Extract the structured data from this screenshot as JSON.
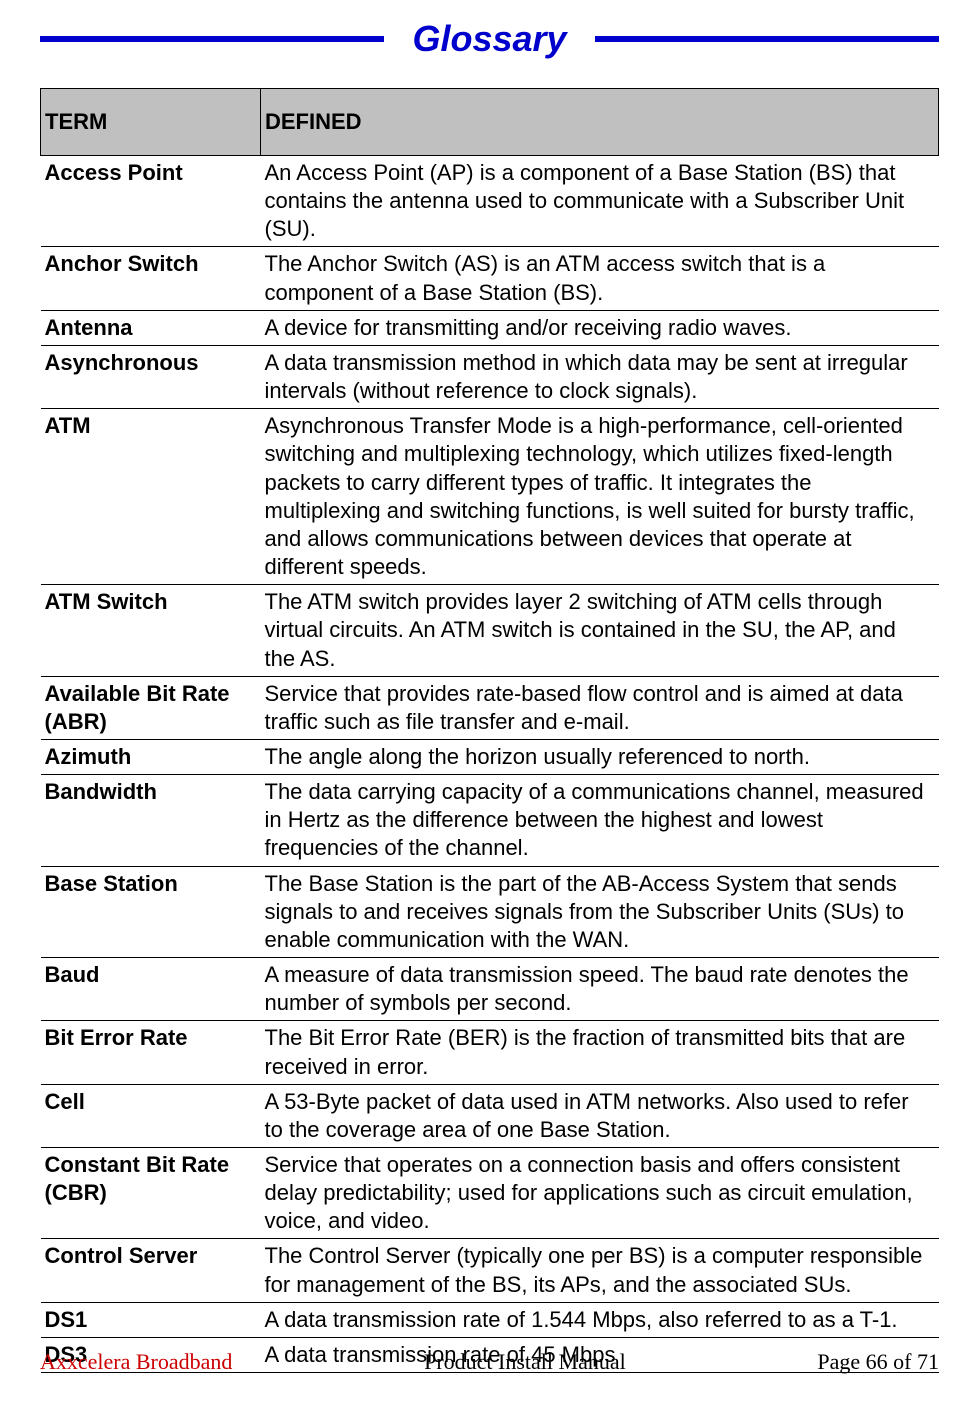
{
  "title": "Glossary",
  "header": {
    "term_col": "TERM",
    "def_col": "DEFINED"
  },
  "rows": [
    {
      "term": "Access Point",
      "def": "An Access Point (AP) is a component of a Base Station (BS) that contains the antenna used to communicate with a Subscriber Unit (SU)."
    },
    {
      "term": "Anchor Switch",
      "def": "The Anchor Switch (AS) is an ATM access switch that is a component of a Base Station (BS)."
    },
    {
      "term": "Antenna",
      "def": "A device for transmitting and/or receiving radio waves."
    },
    {
      "term": "Asynchronous",
      "def": "A data transmission method in which data may be sent at irregular intervals (without reference to clock signals)."
    },
    {
      "term": "ATM",
      "def": "Asynchronous Transfer Mode is a high-performance, cell-oriented switching and multiplexing technology, which utilizes fixed-length packets to carry different types of traffic. It integrates the multiplexing and switching functions, is well suited for bursty traffic, and allows communications between devices that operate at different speeds."
    },
    {
      "term": "ATM Switch",
      "def": "The ATM switch provides layer 2 switching of ATM cells through virtual circuits. An ATM switch is contained in the SU, the AP, and the AS."
    },
    {
      "term": "Available Bit Rate (ABR)",
      "def": "Service that provides rate-based flow control and is aimed at data traffic such as file transfer and e-mail."
    },
    {
      "term": "Azimuth",
      "def": "The angle along the horizon usually referenced to north."
    },
    {
      "term": "Bandwidth",
      "def": "The data carrying capacity of a communications channel, measured in Hertz as the difference between the highest and lowest frequencies of the channel."
    },
    {
      "term": "Base Station",
      "def": "The Base Station is the part of the AB-Access System that sends signals to and receives signals from the Subscriber Units (SUs) to enable communication with the WAN."
    },
    {
      "term": "Baud",
      "def": "A measure of data transmission speed. The baud rate denotes the number of symbols per second."
    },
    {
      "term": "Bit Error Rate",
      "def": "The Bit Error Rate (BER) is the fraction of transmitted bits that are received in error."
    },
    {
      "term": "Cell",
      "def": "A 53-Byte packet of data used in ATM networks. Also used to refer to the coverage area of one Base Station."
    },
    {
      "term": "Constant Bit Rate (CBR)",
      "def": "Service that operates on a connection basis and offers consistent delay predictability; used for applications such as circuit emulation, voice, and video."
    },
    {
      "term": "Control Server",
      "def": "The Control Server (typically one per BS) is a computer responsible for management of the BS, its APs, and the associated SUs."
    },
    {
      "term": "DS1",
      "def": "A data transmission rate of 1.544 Mbps, also referred to as a T-1."
    },
    {
      "term": "DS3",
      "def": "A data transmission rate of  45 Mbps"
    }
  ],
  "footer": {
    "brand": "Axxcelera Broadband",
    "center": "Product Install Manual",
    "page": "Page 66 of 71"
  },
  "style": {
    "title_color": "#0000cc",
    "rule_color": "#0000cc",
    "header_bg": "#c0c0c0",
    "border_color": "#000000",
    "brand_color": "#cc0000",
    "body_font_size": 22,
    "title_font_size": 36
  }
}
